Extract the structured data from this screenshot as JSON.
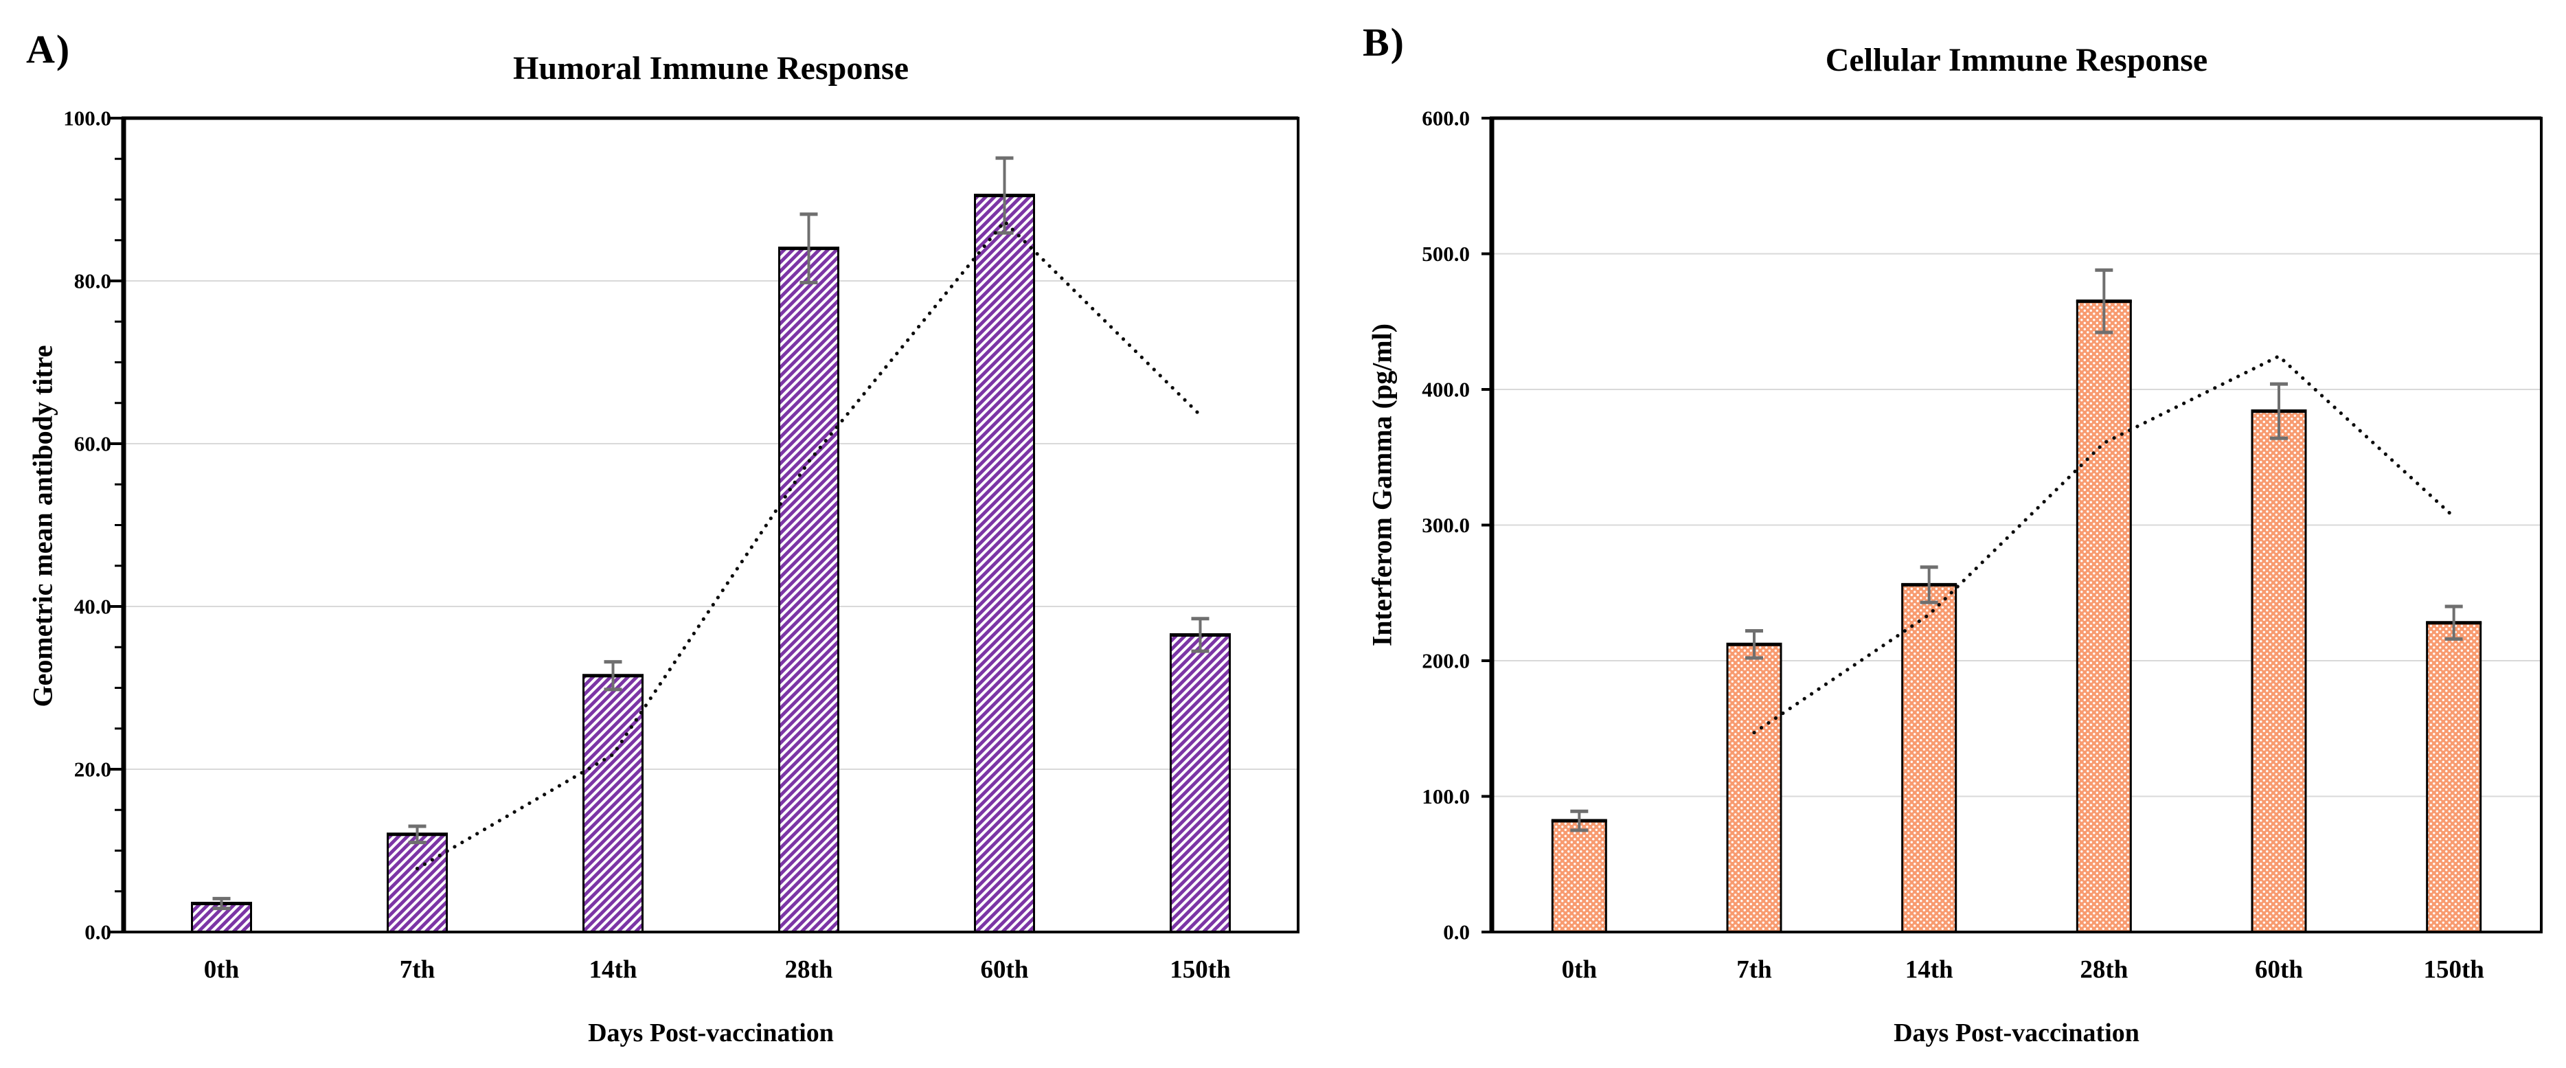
{
  "page": {
    "background": "#ffffff"
  },
  "chart_data": [
    {
      "panel_label": "A)",
      "type": "bar",
      "title": "Humoral Immune Response",
      "xlabel": "Days Post-vaccination",
      "ylabel": "Geometric mean antibody titre",
      "categories": [
        "0th",
        "7th",
        "14th",
        "28th",
        "60th",
        "150th"
      ],
      "values": [
        3.5,
        12.0,
        31.5,
        84.0,
        90.5,
        36.5
      ],
      "error_bars": [
        0.6,
        1.0,
        1.7,
        4.2,
        4.6,
        2.0
      ],
      "trendline": {
        "type": "2-period moving average",
        "line_style": "dotted",
        "start_index": 1,
        "values": [
          7.8,
          21.8,
          57.8,
          87.3,
          63.5
        ]
      },
      "ylim": [
        0,
        100
      ],
      "ystep": 20,
      "yminor_step": 5,
      "ytick_labels": [
        "0.0",
        "20.0",
        "40.0",
        "60.0",
        "80.0",
        "100.0"
      ],
      "grid": true,
      "legend": "none",
      "style": {
        "fill_pattern": "diagonal-stripe-hatch",
        "pattern_color": "#7C35A5",
        "pattern_bg": "#ffffff",
        "bar_border": "#000000",
        "error_bar_color": "#6f6f6f",
        "trendline_color": "#0d0d0d",
        "gridline_color": "#d9d9d9",
        "axis_color": "#000000"
      }
    },
    {
      "panel_label": "B)",
      "type": "bar",
      "title": "Cellular Immune Response",
      "xlabel": "Days Post-vaccination",
      "ylabel": "Interferom Gamma (pg/ml)",
      "categories": [
        "0th",
        "7th",
        "14th",
        "28th",
        "60th",
        "150th"
      ],
      "values": [
        82.0,
        212.0,
        256.0,
        465.0,
        384.0,
        228.0
      ],
      "error_bars": [
        7.0,
        10.0,
        13.0,
        23.0,
        20.0,
        12.0
      ],
      "trendline": {
        "type": "2-period moving average",
        "line_style": "dotted",
        "start_index": 1,
        "values": [
          147.0,
          234.0,
          360.5,
          424.5,
          306.0
        ]
      },
      "ylim": [
        0,
        600
      ],
      "ystep": 100,
      "yminor_step": null,
      "ytick_labels": [
        "0.0",
        "100.0",
        "200.0",
        "300.0",
        "400.0",
        "500.0",
        "600.0"
      ],
      "grid": true,
      "legend": "none",
      "style": {
        "fill_pattern": "dotted-weave",
        "pattern_color": "#F89B70",
        "pattern_bg": "#ffffff",
        "bar_border": "#000000",
        "error_bar_color": "#6f6f6f",
        "trendline_color": "#0d0d0d",
        "gridline_color": "#d9d9d9",
        "axis_color": "#000000"
      }
    }
  ]
}
